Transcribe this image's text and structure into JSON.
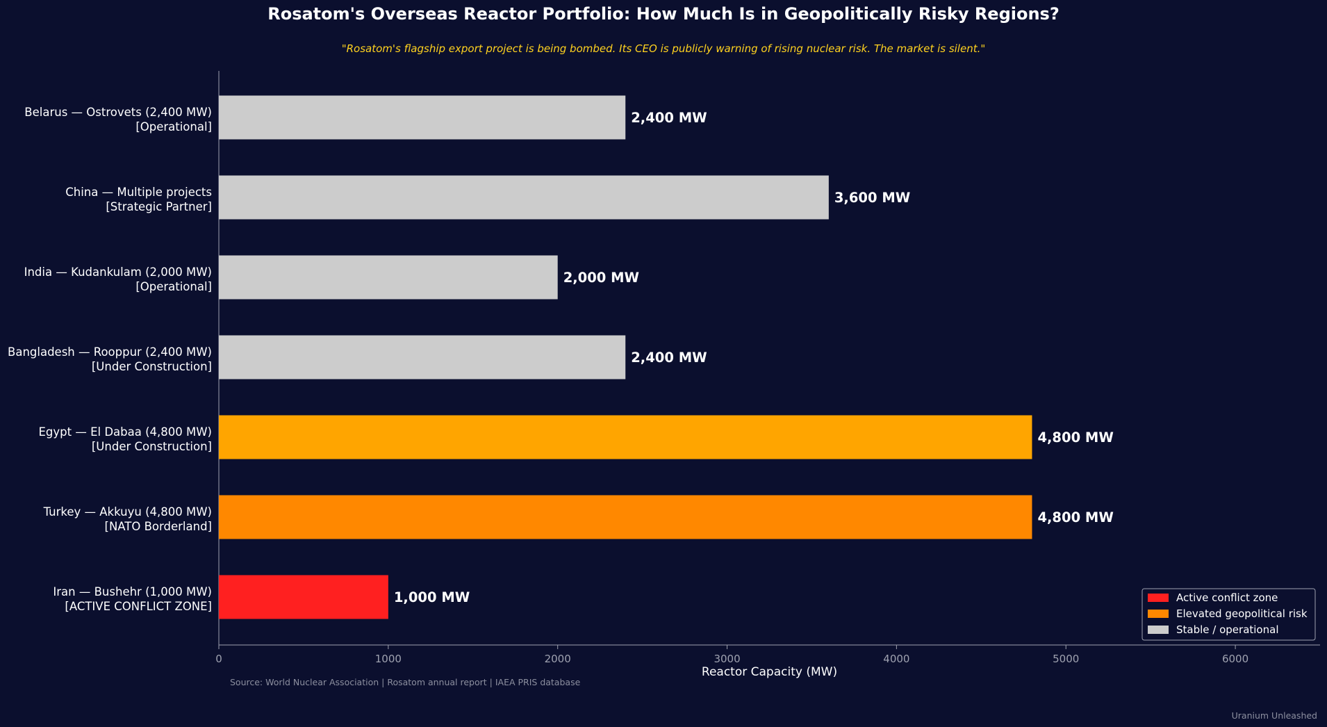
{
  "title": "Rosatom's Overseas Reactor Portfolio: How Much Is in Geopolitically Risky Regions?",
  "subtitle": "\"Rosatom's flagship export project is being bombed. Its CEO is publicly warning of rising nuclear risk. The market is silent.\"",
  "source": "Source: World Nuclear Association | Rosatom annual report | IAEA PRIS database",
  "credit": "Uranium Unleashed",
  "colors": {
    "background": "#0b0f2e",
    "subtitle": "#ffd21f",
    "conflict": "#ff2020",
    "elevated_dark": "#ff8800",
    "elevated_light": "#ffa500",
    "stable": "#cccccc"
  },
  "chart_data": {
    "type": "bar",
    "orientation": "horizontal",
    "xlabel": "Reactor Capacity (MW)",
    "xlim": [
      0,
      6500
    ],
    "xticks": [
      0,
      1000,
      2000,
      3000,
      4000,
      5000,
      6000
    ],
    "grid": false,
    "legend_position": "bottom-right",
    "legend": [
      {
        "label": "Active conflict zone",
        "color": "#ff2020"
      },
      {
        "label": "Elevated geopolitical risk",
        "color": "#ff8800"
      },
      {
        "label": "Stable / operational",
        "color": "#cccccc"
      }
    ],
    "bars": [
      {
        "line1": "Belarus — Ostrovets (2,400 MW)",
        "line2": "[Operational]",
        "value": 2400,
        "value_label": "2,400 MW",
        "color": "#cccccc"
      },
      {
        "line1": "China — Multiple projects",
        "line2": "[Strategic Partner]",
        "value": 3600,
        "value_label": "3,600 MW",
        "color": "#cccccc"
      },
      {
        "line1": "India — Kudankulam (2,000 MW)",
        "line2": "[Operational]",
        "value": 2000,
        "value_label": "2,000 MW",
        "color": "#cccccc"
      },
      {
        "line1": "Bangladesh — Rooppur (2,400 MW)",
        "line2": "[Under Construction]",
        "value": 2400,
        "value_label": "2,400 MW",
        "color": "#cccccc"
      },
      {
        "line1": "Egypt — El Dabaa (4,800 MW)",
        "line2": "[Under Construction]",
        "value": 4800,
        "value_label": "4,800 MW",
        "color": "#ffa500"
      },
      {
        "line1": "Turkey — Akkuyu (4,800 MW)",
        "line2": "[NATO Borderland]",
        "value": 4800,
        "value_label": "4,800 MW",
        "color": "#ff8800"
      },
      {
        "line1": "Iran — Bushehr (1,000 MW)",
        "line2": "[ACTIVE CONFLICT ZONE]",
        "value": 1000,
        "value_label": "1,000 MW",
        "color": "#ff2020"
      }
    ]
  }
}
